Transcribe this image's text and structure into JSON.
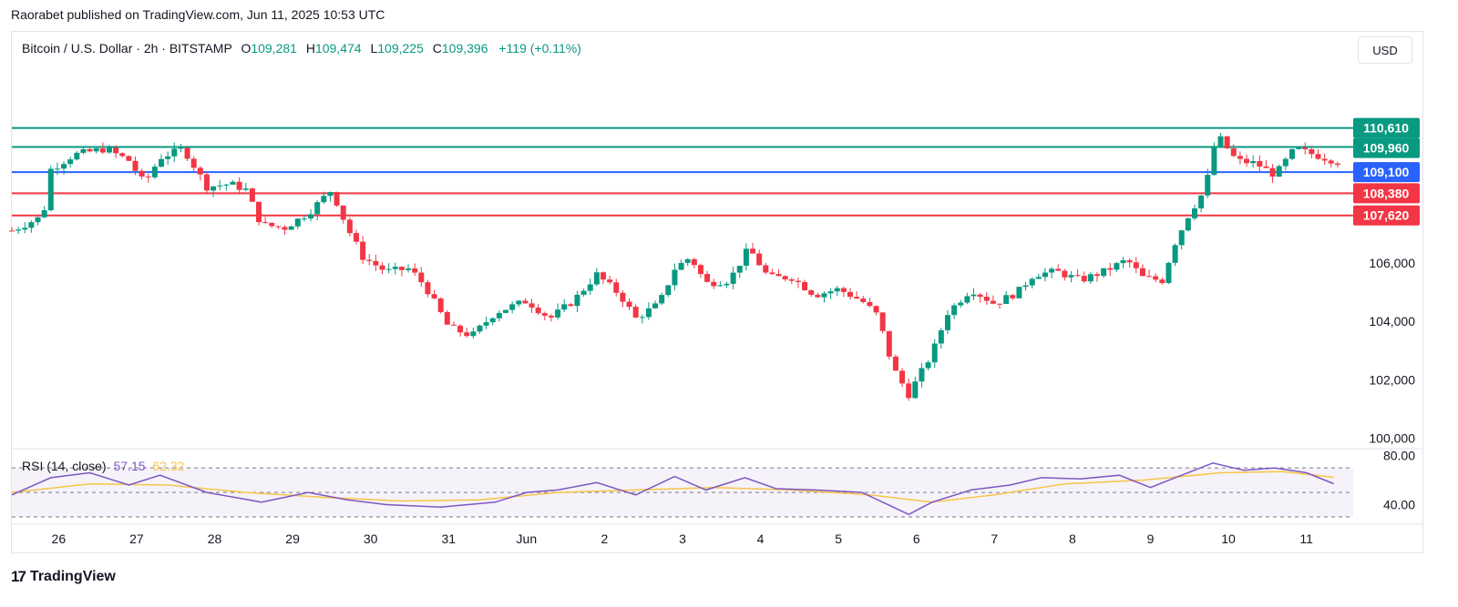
{
  "publisher_line": "Raorabet published on TradingView.com, Jun 11, 2025 10:53 UTC",
  "header": {
    "symbol": "Bitcoin / U.S. Dollar · 2h · BITSTAMP",
    "o_label": "O",
    "o_value": "109,281",
    "h_label": "H",
    "h_value": "109,474",
    "l_label": "L",
    "l_value": "109,225",
    "c_label": "C",
    "c_value": "109,396",
    "change": "+119 (+0.11%)"
  },
  "currency_button": "USD",
  "rsi": {
    "label": "RSI (14, close)",
    "value1": "57.15",
    "value2": "62.32"
  },
  "branding": {
    "logo_mark": "17",
    "logo_text": "TradingView"
  },
  "colors": {
    "up": "#089981",
    "down": "#f23645",
    "support_line": "#f23645",
    "resistance_line": "#089981",
    "mid_line": "#2962ff",
    "rsi_line": "#7e57c2",
    "rsi_ma": "#f7c548"
  },
  "chart_data": [
    {
      "type": "candlestick",
      "title": "Bitcoin / U.S. Dollar · 2h · BITSTAMP",
      "ylim": [
        99800,
        112000
      ],
      "y_ticks": [
        {
          "label": "100,000",
          "value": 100000
        },
        {
          "label": "102,000",
          "value": 102000
        },
        {
          "label": "104,000",
          "value": 104000
        },
        {
          "label": "106,000",
          "value": 106000
        }
      ],
      "x_ticks": [
        {
          "label": "26",
          "day": 0.6
        },
        {
          "label": "27",
          "day": 1.6
        },
        {
          "label": "28",
          "day": 2.6
        },
        {
          "label": "29",
          "day": 3.6
        },
        {
          "label": "30",
          "day": 4.6
        },
        {
          "label": "31",
          "day": 5.6
        },
        {
          "label": "Jun",
          "day": 6.6
        },
        {
          "label": "2",
          "day": 7.6
        },
        {
          "label": "3",
          "day": 8.6
        },
        {
          "label": "4",
          "day": 9.6
        },
        {
          "label": "5",
          "day": 10.6
        },
        {
          "label": "6",
          "day": 11.6
        },
        {
          "label": "7",
          "day": 12.6
        },
        {
          "label": "8",
          "day": 13.6
        },
        {
          "label": "9",
          "day": 14.6
        },
        {
          "label": "10",
          "day": 15.6
        },
        {
          "label": "11",
          "day": 16.6
        }
      ],
      "horizontal_levels": [
        {
          "label": "110,610",
          "value": 110610,
          "color": "#089981"
        },
        {
          "label": "109,960",
          "value": 109960,
          "color": "#089981"
        },
        {
          "label": "109,100",
          "value": 109100,
          "color": "#2962ff"
        },
        {
          "label": "108,380",
          "value": 108380,
          "color": "#f23645"
        },
        {
          "label": "107,620",
          "value": 107620,
          "color": "#f23645"
        }
      ],
      "close_path": [
        [
          0,
          107100
        ],
        [
          0.4,
          107600
        ],
        [
          0.5,
          109200
        ],
        [
          0.8,
          109700
        ],
        [
          1.2,
          109900
        ],
        [
          1.5,
          109500
        ],
        [
          1.7,
          108700
        ],
        [
          1.9,
          109600
        ],
        [
          2.2,
          109900
        ],
        [
          2.5,
          108600
        ],
        [
          2.8,
          108700
        ],
        [
          3.0,
          108500
        ],
        [
          3.2,
          107300
        ],
        [
          3.5,
          107200
        ],
        [
          3.8,
          107700
        ],
        [
          4.1,
          108500
        ],
        [
          4.3,
          107200
        ],
        [
          4.5,
          106200
        ],
        [
          4.8,
          105700
        ],
        [
          5.1,
          105800
        ],
        [
          5.3,
          105200
        ],
        [
          5.6,
          103800
        ],
        [
          5.9,
          103500
        ],
        [
          6.2,
          104300
        ],
        [
          6.6,
          104700
        ],
        [
          6.9,
          104100
        ],
        [
          7.2,
          104700
        ],
        [
          7.5,
          105600
        ],
        [
          7.8,
          104900
        ],
        [
          8.0,
          104100
        ],
        [
          8.3,
          104600
        ],
        [
          8.5,
          105800
        ],
        [
          8.7,
          106200
        ],
        [
          8.9,
          105300
        ],
        [
          9.2,
          105400
        ],
        [
          9.45,
          106500
        ],
        [
          9.7,
          105500
        ],
        [
          10.0,
          105500
        ],
        [
          10.3,
          104900
        ],
        [
          10.6,
          105100
        ],
        [
          10.9,
          104700
        ],
        [
          11.1,
          104200
        ],
        [
          11.3,
          102400
        ],
        [
          11.5,
          101500
        ],
        [
          11.8,
          102900
        ],
        [
          12.0,
          104300
        ],
        [
          12.3,
          105100
        ],
        [
          12.6,
          104600
        ],
        [
          12.9,
          105000
        ],
        [
          13.1,
          105600
        ],
        [
          13.4,
          105700
        ],
        [
          13.7,
          105400
        ],
        [
          14.0,
          105700
        ],
        [
          14.3,
          106100
        ],
        [
          14.5,
          105500
        ],
        [
          14.75,
          105400
        ],
        [
          14.9,
          106600
        ],
        [
          15.1,
          107700
        ],
        [
          15.3,
          108500
        ],
        [
          15.45,
          110400
        ],
        [
          15.7,
          109500
        ],
        [
          15.95,
          109400
        ],
        [
          16.2,
          109000
        ],
        [
          16.45,
          109900
        ],
        [
          16.7,
          109700
        ],
        [
          16.95,
          109500
        ],
        [
          17.05,
          109396
        ]
      ]
    },
    {
      "type": "line",
      "title": "RSI (14, close)",
      "ylim": [
        30,
        82
      ],
      "y_ticks": [
        {
          "label": "80.00",
          "value": 80
        },
        {
          "label": "40.00",
          "value": 40
        }
      ],
      "bands": [
        70,
        50,
        30
      ],
      "series": [
        {
          "values": [
            [
              0,
              48
            ],
            [
              0.5,
              62
            ],
            [
              1.0,
              66
            ],
            [
              1.5,
              56
            ],
            [
              1.9,
              64
            ],
            [
              2.5,
              50
            ],
            [
              3.2,
              42
            ],
            [
              3.8,
              50
            ],
            [
              4.3,
              44
            ],
            [
              4.8,
              40
            ],
            [
              5.5,
              38
            ],
            [
              6.2,
              42
            ],
            [
              6.6,
              50
            ],
            [
              7.0,
              52
            ],
            [
              7.5,
              58
            ],
            [
              8.0,
              48
            ],
            [
              8.5,
              63
            ],
            [
              8.9,
              52
            ],
            [
              9.4,
              62
            ],
            [
              9.8,
              53
            ],
            [
              10.3,
              52
            ],
            [
              10.9,
              50
            ],
            [
              11.3,
              38
            ],
            [
              11.5,
              32
            ],
            [
              11.8,
              42
            ],
            [
              12.3,
              52
            ],
            [
              12.8,
              56
            ],
            [
              13.2,
              62
            ],
            [
              13.7,
              61
            ],
            [
              14.2,
              64
            ],
            [
              14.6,
              54
            ],
            [
              15.0,
              64
            ],
            [
              15.4,
              74
            ],
            [
              15.8,
              68
            ],
            [
              16.2,
              70
            ],
            [
              16.6,
              66
            ],
            [
              16.95,
              57.15
            ]
          ]
        },
        {
          "values": [
            [
              0,
              50
            ],
            [
              1.0,
              57
            ],
            [
              2.0,
              56
            ],
            [
              3.0,
              50
            ],
            [
              4.0,
              46
            ],
            [
              5.0,
              43
            ],
            [
              6.0,
              44
            ],
            [
              7.0,
              50
            ],
            [
              8.0,
              52
            ],
            [
              9.0,
              54
            ],
            [
              10.0,
              52
            ],
            [
              11.0,
              48
            ],
            [
              11.8,
              42
            ],
            [
              12.6,
              48
            ],
            [
              13.5,
              57
            ],
            [
              14.5,
              60
            ],
            [
              15.5,
              66
            ],
            [
              16.3,
              67
            ],
            [
              16.95,
              62.32
            ]
          ]
        }
      ]
    }
  ]
}
